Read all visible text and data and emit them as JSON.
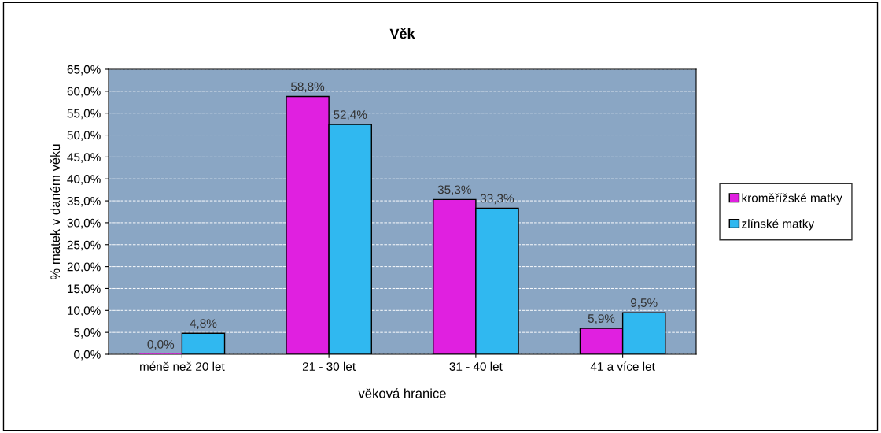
{
  "chart_data": {
    "type": "bar",
    "title": "Věk",
    "xlabel": "věková hranice",
    "ylabel": "% matek v daném věku",
    "categories": [
      "méně než 20 let",
      "21 - 30 let",
      "31 - 40 let",
      "41 a více let"
    ],
    "series": [
      {
        "name": "kroměřížské matky",
        "color": "#e020e0",
        "values": [
          0.0,
          58.8,
          35.3,
          5.9
        ],
        "value_labels": [
          "0,0%",
          "58,8%",
          "35,3%",
          "5,9%"
        ]
      },
      {
        "name": "zlínské matky",
        "color": "#30b8f0",
        "values": [
          4.8,
          52.4,
          33.3,
          9.5
        ],
        "value_labels": [
          "4,8%",
          "52,4%",
          "33,3%",
          "9,5%"
        ]
      }
    ],
    "ylim": [
      0,
      65
    ],
    "yticks": [
      {
        "value": 0,
        "label": "0,0%"
      },
      {
        "value": 5,
        "label": "5,0%"
      },
      {
        "value": 10,
        "label": "10,0%"
      },
      {
        "value": 15,
        "label": "15,0%"
      },
      {
        "value": 20,
        "label": "20,0%"
      },
      {
        "value": 25,
        "label": "25,0%"
      },
      {
        "value": 30,
        "label": "30,0%"
      },
      {
        "value": 35,
        "label": "35,0%"
      },
      {
        "value": 40,
        "label": "40,0%"
      },
      {
        "value": 45,
        "label": "45,0%"
      },
      {
        "value": 50,
        "label": "50,0%"
      },
      {
        "value": 55,
        "label": "55,0%"
      },
      {
        "value": 60,
        "label": "60,0%"
      },
      {
        "value": 65,
        "label": "65,0%"
      }
    ],
    "grid": "y",
    "legend": "right"
  }
}
